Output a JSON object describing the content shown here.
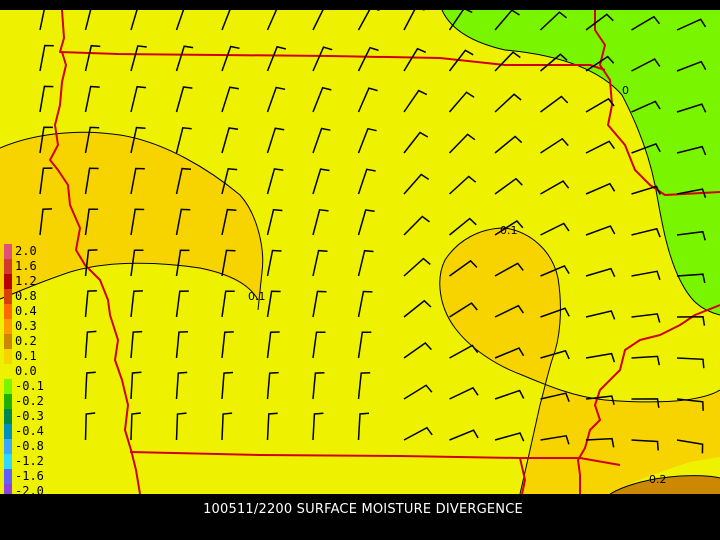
{
  "caption": "100511/2200 SURFACE MOISTURE DIVERGENCE",
  "colors": {
    "background": "#eef200",
    "band_0_1": "#f7d400",
    "band_0_2": "#cc8800",
    "negative": "#7af500",
    "boundaries": "#d00010",
    "contours": "#000000",
    "wind_barbs": "#000000"
  },
  "legend": {
    "items": [
      {
        "label": "2.0",
        "color": "#e0507a"
      },
      {
        "label": "1.6",
        "color": "#d23a30"
      },
      {
        "label": "1.2",
        "color": "#b80000"
      },
      {
        "label": "0.8",
        "color": "#d84000"
      },
      {
        "label": "0.4",
        "color": "#ff6a00"
      },
      {
        "label": "0.3",
        "color": "#ff9a00"
      },
      {
        "label": "0.2",
        "color": "#cc8800"
      },
      {
        "label": "0.1",
        "color": "#f7d400"
      },
      {
        "label": "0.0",
        "color": "#eef200"
      },
      {
        "label": "-0.1",
        "color": "#7af500"
      },
      {
        "label": "-0.2",
        "color": "#1fb000"
      },
      {
        "label": "-0.3",
        "color": "#008850"
      },
      {
        "label": "-0.4",
        "color": "#0090c0"
      },
      {
        "label": "-0.8",
        "color": "#3aa8ff"
      },
      {
        "label": "-1.2",
        "color": "#30d8ff"
      },
      {
        "label": "-1.6",
        "color": "#6060ff"
      },
      {
        "label": "-2.0",
        "color": "#9040e0"
      }
    ]
  },
  "contour_labels": [
    {
      "id": "contour-label-0-tr",
      "text": "0"
    },
    {
      "id": "contour-label-0.1-east",
      "text": "0.1"
    },
    {
      "id": "contour-label-0.1-west",
      "text": "0.1"
    },
    {
      "id": "contour-label-0.2-se",
      "text": "0.2"
    }
  ]
}
